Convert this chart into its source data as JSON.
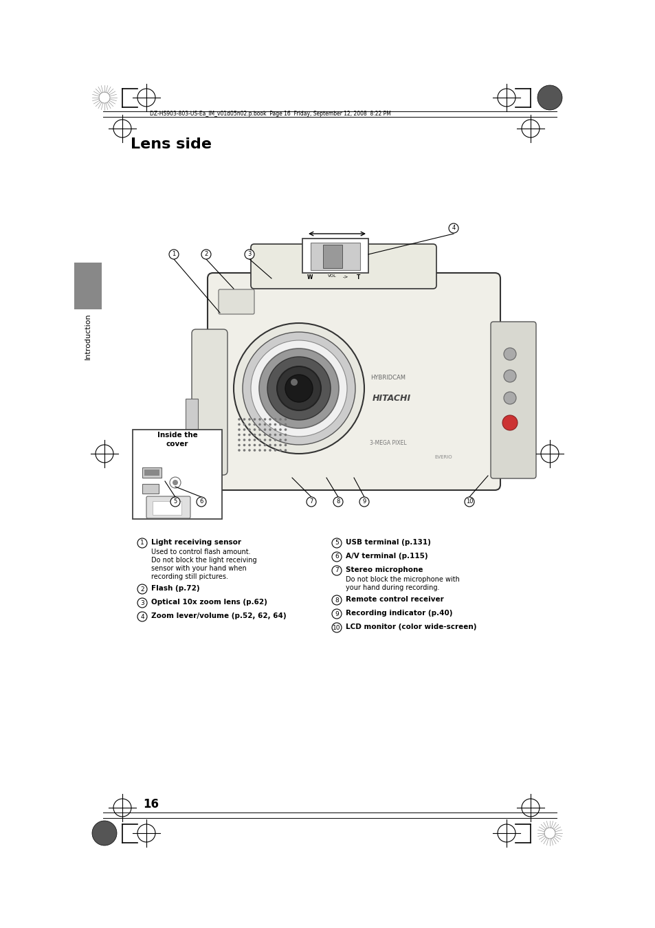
{
  "page_title": "Lens side",
  "header_text": "DZ-HS903-803-US-Ea_IM_v01d05n02.p.book  Page 16  Friday, September 12, 2008  8:22 PM",
  "page_number": "16",
  "sidebar_text": "Introduction",
  "inside_cover_label": "Inside the\ncover",
  "items_left": [
    {
      "num": "1",
      "bold": "Light receiving sensor",
      "normal": "Used to control flash amount.\nDo not block the light receiving\nsensor with your hand when\nrecording still pictures."
    },
    {
      "num": "2",
      "bold": "Flash (p.72)",
      "normal": ""
    },
    {
      "num": "3",
      "bold": "Optical 10x zoom lens (p.62)",
      "normal": ""
    },
    {
      "num": "4",
      "bold": "Zoom lever/volume (p.52, 62, 64)",
      "normal": ""
    }
  ],
  "items_right": [
    {
      "num": "5",
      "bold": "USB terminal (p.131)",
      "normal": ""
    },
    {
      "num": "6",
      "bold": "A/V terminal (p.115)",
      "normal": ""
    },
    {
      "num": "7",
      "bold": "Stereo microphone",
      "normal": "Do not block the microphone with\nyour hand during recording."
    },
    {
      "num": "8",
      "bold": "Remote control receiver",
      "normal": ""
    },
    {
      "num": "9",
      "bold": "Recording indicator (p.40)",
      "normal": ""
    },
    {
      "num": "10",
      "bold": "LCD monitor (color wide-screen)",
      "normal": ""
    }
  ],
  "bg_color": "#ffffff",
  "text_color": "#000000",
  "gray_color": "#888888",
  "light_gray": "#cccccc"
}
